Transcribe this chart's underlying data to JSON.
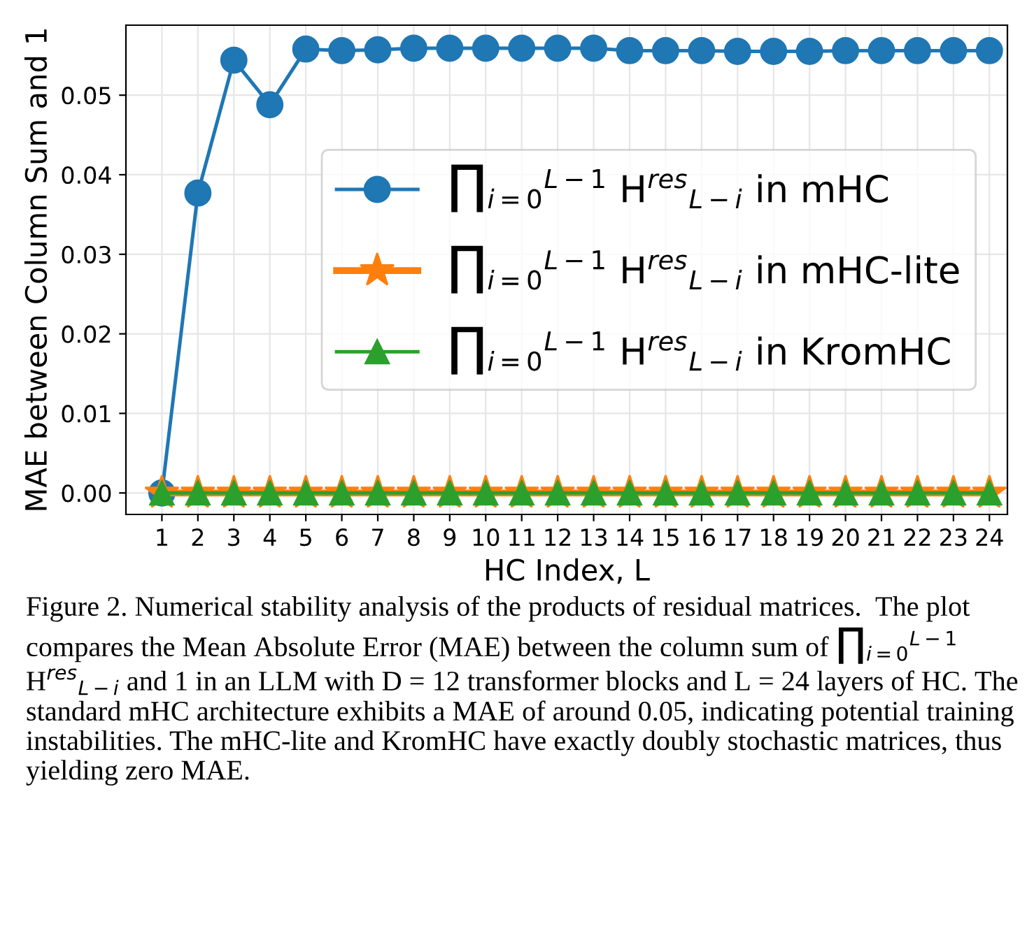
{
  "chart_data": {
    "type": "line",
    "xlabel": "HC Index, L",
    "ylabel": "MAE between Column Sum and 1",
    "x": [
      1,
      2,
      3,
      4,
      5,
      6,
      7,
      8,
      9,
      10,
      11,
      12,
      13,
      14,
      15,
      16,
      17,
      18,
      19,
      20,
      21,
      22,
      23,
      24
    ],
    "series": [
      {
        "name": "∏$_{i=0}$$^{L−1}$ H$^{res}$$_{L−i}$ in mHC",
        "color": "#1f77b4",
        "marker": "circle",
        "values": [
          0.0,
          0.0377,
          0.0544,
          0.0488,
          0.0558,
          0.0556,
          0.0557,
          0.0559,
          0.0559,
          0.0559,
          0.0559,
          0.0559,
          0.0559,
          0.0556,
          0.0556,
          0.0556,
          0.0555,
          0.0555,
          0.0555,
          0.0556,
          0.0556,
          0.0556,
          0.0556,
          0.0556
        ]
      },
      {
        "name": "∏$_{i=0}$$^{L−1}$ H$^{res}$$_{L−i}$ in mHC-lite",
        "color": "#ff7f0e",
        "marker": "star",
        "values": [
          0,
          0,
          0,
          0,
          0,
          0,
          0,
          0,
          0,
          0,
          0,
          0,
          0,
          0,
          0,
          0,
          0,
          0,
          0,
          0,
          0,
          0,
          0,
          0
        ]
      },
      {
        "name": "∏$_{i=0}$$^{L−1}$ H$^{res}$$_{L−i}$ in KromHC",
        "color": "#2ca02c",
        "marker": "triangle",
        "values": [
          0,
          0,
          0,
          0,
          0,
          0,
          0,
          0,
          0,
          0,
          0,
          0,
          0,
          0,
          0,
          0,
          0,
          0,
          0,
          0,
          0,
          0,
          0,
          0
        ]
      }
    ],
    "xlim": [
      0,
      24.5
    ],
    "xticks": [
      1,
      2,
      3,
      4,
      5,
      6,
      7,
      8,
      9,
      10,
      11,
      12,
      13,
      14,
      15,
      16,
      17,
      18,
      19,
      20,
      21,
      22,
      23,
      24
    ],
    "ylim": [
      -0.0027,
      0.0588
    ],
    "yticks": [
      {
        "value": 0,
        "label": "0.00"
      },
      {
        "value": 0.01,
        "label": "0.01"
      },
      {
        "value": 0.02,
        "label": "0.02"
      },
      {
        "value": 0.03,
        "label": "0.03"
      },
      {
        "value": 0.04,
        "label": "0.04"
      },
      {
        "value": 0.05,
        "label": "0.05"
      }
    ],
    "grid": true,
    "legend": "center right",
    "line_style": "solid",
    "annotations": [
      "Figure 2. Numerical stability analysis of the products of residual matrices.  The plot compares the Mean Absolute Error (MAE) between the column sum of ∏$_{i=0}$$^{L−1}$ H$^{res}$$_{L−i}$ and 1 in an LLM with D = 12 transformer blocks and L = 24 layers of HC. The standard mHC architecture exhibits a MAE of around 0.05, indicating potential training instabilities. The mHC-lite and KromHC have exactly doubly stochastic matrices, thus yielding zero MAE."
    ]
  }
}
